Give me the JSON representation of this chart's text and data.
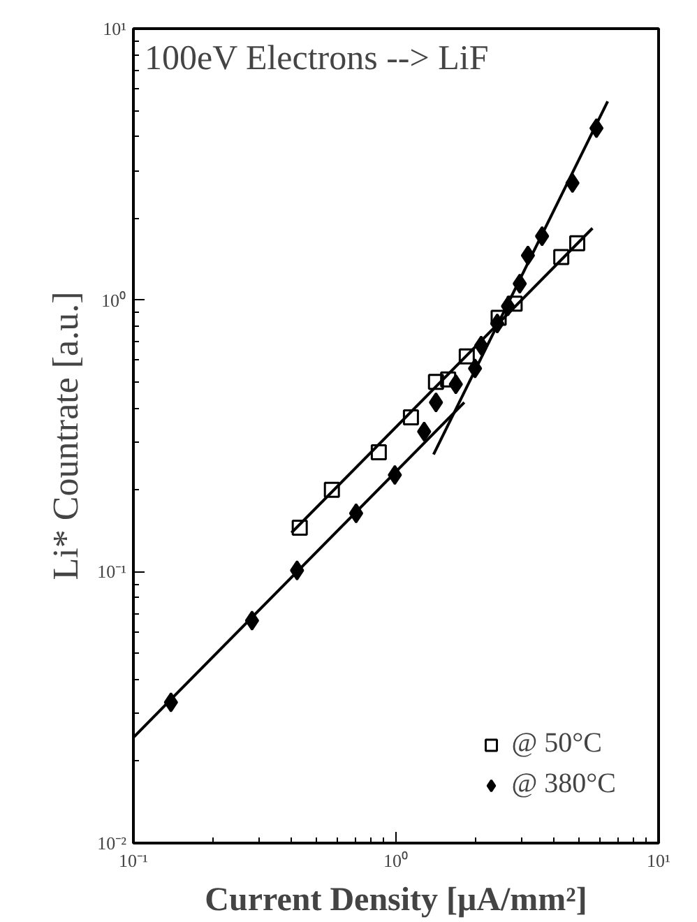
{
  "chart_data": {
    "type": "scatter",
    "title": "100eV Electrons --> LiF",
    "xlabel": "Current Density [μA/mm²]",
    "ylabel": "Li* Countrate [a.u.]",
    "log": "xy",
    "xlim": [
      0.1,
      10
    ],
    "ylim": [
      0.01,
      10
    ],
    "xticks": [
      {
        "value": 0.1,
        "label": "10⁻¹"
      },
      {
        "value": 1,
        "label": "10⁰"
      },
      {
        "value": 10,
        "label": "10¹"
      }
    ],
    "yticks": [
      {
        "value": 0.01,
        "label": "10⁻²"
      },
      {
        "value": 0.1,
        "label": "10⁻¹"
      },
      {
        "value": 1,
        "label": "10⁰"
      },
      {
        "value": 10,
        "label": "10¹"
      }
    ],
    "grid": false,
    "legend": "bottom right",
    "series": [
      {
        "name": "@ 50°C",
        "marker": "square",
        "color": "#000000",
        "x": [
          0.43,
          0.57,
          0.86,
          1.14,
          1.42,
          1.58,
          1.86,
          2.46,
          2.83,
          4.26,
          4.9
        ],
        "values": [
          0.145,
          0.2,
          0.275,
          0.37,
          0.5,
          0.51,
          0.62,
          0.86,
          0.97,
          1.44,
          1.62
        ]
      },
      {
        "name": "@ 380°C",
        "marker": "diamond",
        "color": "#000000",
        "x": [
          0.139,
          0.283,
          0.42,
          0.705,
          0.99,
          1.28,
          1.42,
          1.69,
          2.0,
          2.11,
          2.43,
          2.67,
          2.96,
          3.18,
          3.6,
          4.7,
          5.8
        ],
        "values": [
          0.033,
          0.066,
          0.101,
          0.164,
          0.227,
          0.328,
          0.42,
          0.49,
          0.56,
          0.68,
          0.82,
          0.95,
          1.15,
          1.46,
          1.72,
          2.7,
          4.3
        ]
      },
      {
        "type": "line",
        "color": "#000000",
        "x": [
          0.4,
          5.6
        ],
        "values": [
          0.139,
          1.84
        ]
      },
      {
        "type": "line",
        "color": "#000000",
        "x": [
          0.1,
          1.82
        ],
        "values": [
          0.0245,
          0.42
        ]
      },
      {
        "type": "line",
        "color": "#000000",
        "x": [
          1.39,
          6.4
        ],
        "values": [
          0.27,
          5.4
        ]
      }
    ]
  }
}
